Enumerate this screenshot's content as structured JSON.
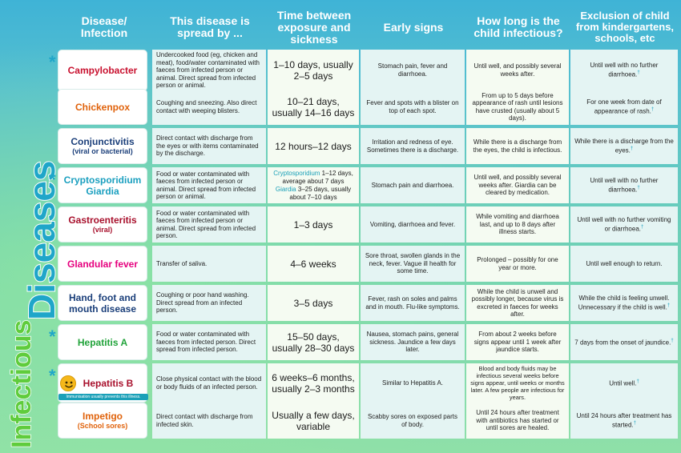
{
  "side_title": {
    "part1": "Infectious",
    "part2": "Diseases"
  },
  "headers": {
    "disease": "Disease/ Infection",
    "spread": "This disease is spread by ...",
    "time": "Time between exposure and sickness",
    "signs": "Early signs",
    "infectious": "How long is the child infectious?",
    "exclusion": "Exclusion of child from kindergartens, schools, etc"
  },
  "colors": {
    "title_blue": "#1fa6c9",
    "title_green": "#5fcc3c"
  },
  "rows": [
    {
      "name": "Campylobacter",
      "sub": "",
      "color": "red",
      "star": true,
      "spread": "Undercooked food (eg, chicken and meat), food/water contaminated with faeces from infected person or animal. Direct spread from infected person or animal.",
      "time": "1–10 days, usually 2–5 days",
      "signs": "Stomach pain, fever and diarrhoea.",
      "infectious": "Until well, and possibly several weeks after.",
      "exclusion": "Until well with no further diarrhoea."
    },
    {
      "name": "Chickenpox",
      "sub": "",
      "color": "orange",
      "star": false,
      "spread": "Coughing and sneezing. Also direct contact with weeping blisters.",
      "time": "10–21 days, usually 14–16 days",
      "signs": "Fever and spots with a blister on top of each spot.",
      "infectious": "From up to 5 days before appearance of rash until lesions have crusted (usually about 5 days).",
      "exclusion": "For one week from date of appearance of rash."
    },
    {
      "name": "Conjunctivitis",
      "sub": "(viral or bacterial)",
      "color": "navy",
      "star": false,
      "spread": "Direct contact with discharge from the eyes or with items contaminated by the discharge.",
      "time": "12 hours–12 days",
      "signs": "Irritation and redness of eye. Sometimes there is a discharge.",
      "infectious": "While there is a discharge from the eyes, the child is infectious.",
      "exclusion": "While there is a discharge from the eyes."
    },
    {
      "name": "Cryptosporidium",
      "sub": "Giardia",
      "color": "teal",
      "star": true,
      "spread": "Food or water contaminated with faeces from infected person or animal. Direct spread from infected person or animal.",
      "time_crypto_label": "Cryptosporidium",
      "time_crypto": " 1–12 days, average about 7 days",
      "time_giardia_label": "Giardia",
      "time_giardia": " 3–25 days, usually about 7–10 days",
      "signs": "Stomach pain and diarrhoea.",
      "infectious": "Until well, and possibly several weeks after. Giardia can be cleared by medication.",
      "exclusion": "Until well with no further diarrhoea."
    },
    {
      "name": "Gastroenteritis",
      "sub": "(viral)",
      "color": "darkred",
      "star": false,
      "spread": "Food or water contaminated with faeces from infected person or animal. Direct spread from infected person.",
      "time": "1–3 days",
      "signs": "Vomiting, diarrhoea and fever.",
      "infectious": "While vomiting and diarrhoea last, and up to 8 days after illness starts.",
      "exclusion": "Until well with no further vomiting or diarrhoea."
    },
    {
      "name": "Glandular fever",
      "sub": "",
      "color": "pink",
      "star": false,
      "spread": "Transfer of saliva.",
      "time": "4–6 weeks",
      "signs": "Sore throat, swollen glands in the neck, fever. Vague ill health for some time.",
      "infectious": "Prolonged – possibly for one year or more.",
      "exclusion": "Until well enough to return."
    },
    {
      "name": "Hand, foot and mouth disease",
      "sub": "",
      "color": "navy",
      "star": false,
      "spread": "Coughing or poor hand washing. Direct spread from an infected person.",
      "time": "3–5 days",
      "signs": "Fever, rash on soles and palms and in mouth. Flu-like symptoms.",
      "infectious": "While the child is unwell and possibly longer, because virus is excreted in faeces for weeks after.",
      "exclusion": "While the child is feeling unwell. Unnecessary if the child is well."
    },
    {
      "name": "Hepatitis A",
      "sub": "",
      "color": "green",
      "star": true,
      "spread": "Food or water contaminated with faeces from infected person. Direct spread from infected person.",
      "time": "15–50 days, usually 28–30 days",
      "signs": "Nausea, stomach pains, general sickness. Jaundice a few days later.",
      "infectious": "From about 2 weeks before signs appear until 1 week after jaundice starts.",
      "exclusion": "7 days from the onset of jaundice."
    },
    {
      "name": "Hepatitis B",
      "sub": "",
      "color": "darkred",
      "star": true,
      "immunisation": "Immunisation usually prevents this illness.",
      "spread": "Close physical contact with the blood or body fluids of an infected person.",
      "time": "6 weeks–6 months, usually 2–3 months",
      "signs": "Similar to Hepatitis A.",
      "infectious": "Blood and body fluids may be infectious several weeks before signs appear, until weeks or months later. A few people are infectious for years.",
      "exclusion": "Until well."
    },
    {
      "name": "Impetigo",
      "sub": "(School sores)",
      "color": "orange",
      "star": false,
      "spread": "Direct contact with discharge from infected skin.",
      "time": "Usually a few days, variable",
      "signs": "Scabby sores on exposed parts of body.",
      "infectious": "Until 24 hours after treatment with antibiotics has started or until sores are healed.",
      "exclusion": "Until 24 hours after treatment has started."
    }
  ]
}
